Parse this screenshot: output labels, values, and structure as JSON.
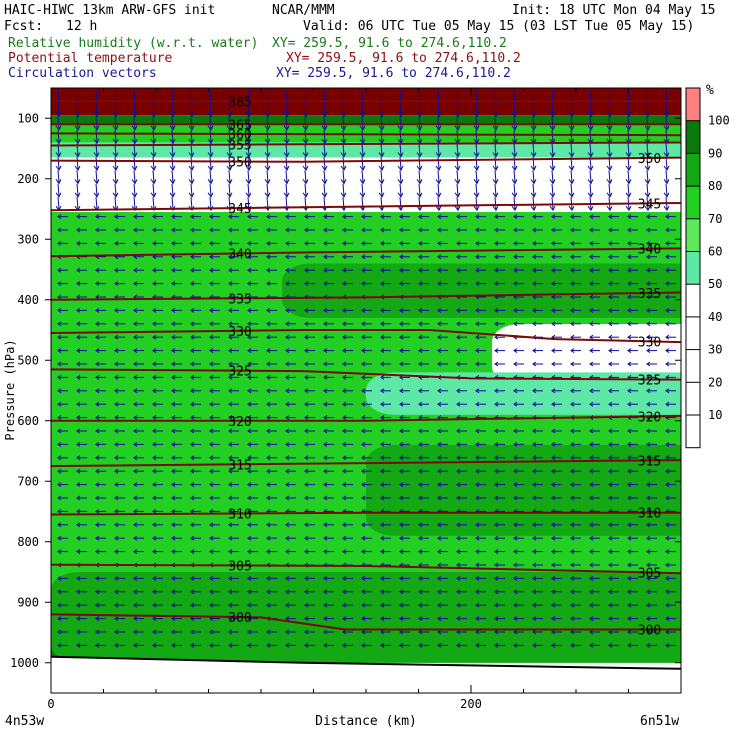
{
  "header": {
    "model": "HAIC-HIWC 13km ARW-GFS init",
    "center": "NCAR/MMM",
    "init": "Init: 18 UTC Mon 04 May 15",
    "fcst_label": "Fcst:",
    "fcst_value": "12 h",
    "valid": "Valid: 06 UTC Tue 05 May 15 (03 LST Tue 05 May 15)",
    "field1": "Relative humidity (w.r.t. water)",
    "field1_xy": "XY= 259.5, 91.6 to 274.6,110.2",
    "field2": "Potential temperature",
    "field2_xy": "XY= 259.5, 91.6 to 274.6,110.2",
    "field3": "Circulation vectors",
    "field3_xy": "XY= 259.5, 91.6 to 274.6,110.2"
  },
  "axes": {
    "ylabel": "Pressure (hPa)",
    "xlabel": "Distance (km)",
    "left_endpoint": "4n53w",
    "right_endpoint": "6n51w"
  },
  "colorbar": {
    "unit": "%",
    "levels": [
      "10",
      "20",
      "30",
      "40",
      "50",
      "60",
      "70",
      "80",
      "90",
      "100"
    ],
    "colors": {
      "0-50": "#ffffff",
      "50-60": "#5ee8a6",
      "60-70": "#5ee85a",
      "70-80": "#24cf24",
      "80-90": "#14a814",
      "90-100": "#0a780a",
      "100+": "#ff8080"
    }
  },
  "colors": {
    "theta_line": "#7a0a0a",
    "vector": "#0c0c9a",
    "top_rh_fill": "#7a0000"
  },
  "chart_data": {
    "type": "heatmap",
    "x_range_km": [
      0,
      300
    ],
    "x_ticks": [
      0,
      200
    ],
    "y_range_hpa": [
      50,
      1050
    ],
    "y_ticks": [
      100,
      200,
      300,
      400,
      500,
      600,
      700,
      800,
      900,
      1000
    ],
    "y_scale": "linear",
    "theta_contours_K": [
      {
        "label": "385",
        "p": [
          [
            0,
            72
          ],
          [
            300,
            72
          ]
        ]
      },
      {
        "label": "365",
        "p": [
          [
            0,
            110
          ],
          [
            300,
            110
          ]
        ]
      },
      {
        "label": "360",
        "p": [
          [
            0,
            125
          ],
          [
            300,
            128
          ]
        ]
      },
      {
        "label": "355",
        "p": [
          [
            0,
            145
          ],
          [
            300,
            140
          ]
        ]
      },
      {
        "label": "350",
        "p": [
          [
            0,
            170
          ],
          [
            120,
            172
          ],
          [
            300,
            165
          ]
        ]
      },
      {
        "label": "345",
        "p": [
          [
            0,
            252
          ],
          [
            100,
            248
          ],
          [
            300,
            240
          ]
        ]
      },
      {
        "label": "340",
        "p": [
          [
            0,
            328
          ],
          [
            120,
            322
          ],
          [
            300,
            315
          ]
        ]
      },
      {
        "label": "335",
        "p": [
          [
            0,
            400
          ],
          [
            150,
            396
          ],
          [
            300,
            388
          ]
        ]
      },
      {
        "label": "330",
        "p": [
          [
            0,
            455
          ],
          [
            120,
            450
          ],
          [
            180,
            450
          ],
          [
            240,
            465
          ],
          [
            300,
            470
          ]
        ]
      },
      {
        "label": "325",
        "p": [
          [
            0,
            515
          ],
          [
            120,
            518
          ],
          [
            200,
            530
          ],
          [
            300,
            532
          ]
        ]
      },
      {
        "label": "320",
        "p": [
          [
            0,
            600
          ],
          [
            150,
            600
          ],
          [
            300,
            592
          ]
        ]
      },
      {
        "label": "315",
        "p": [
          [
            0,
            675
          ],
          [
            150,
            670
          ],
          [
            300,
            665
          ]
        ]
      },
      {
        "label": "310",
        "p": [
          [
            0,
            755
          ],
          [
            150,
            752
          ],
          [
            300,
            752
          ]
        ]
      },
      {
        "label": "305",
        "p": [
          [
            0,
            838
          ],
          [
            150,
            840
          ],
          [
            300,
            852
          ]
        ]
      },
      {
        "label": "300",
        "p": [
          [
            0,
            920
          ],
          [
            100,
            925
          ],
          [
            140,
            945
          ],
          [
            300,
            945
          ]
        ]
      }
    ],
    "rh_layers": [
      {
        "p": [
          50,
          95
        ],
        "rh": 100
      },
      {
        "p": [
          95,
          110
        ],
        "rh": 95
      },
      {
        "p": [
          110,
          140
        ],
        "rh": 75
      },
      {
        "p": [
          140,
          165
        ],
        "rh": 55
      },
      {
        "p": [
          165,
          255
        ],
        "rh": 20
      },
      {
        "p": [
          255,
          950
        ],
        "rh": 75
      },
      {
        "p": [
          950,
          1000
        ],
        "rh": 90
      }
    ],
    "rh_features": [
      {
        "desc": "dry",
        "x": [
          210,
          300
        ],
        "p": [
          440,
          540
        ],
        "rh": 30
      },
      {
        "desc": "dry tongue",
        "x": [
          150,
          300
        ],
        "p": [
          520,
          590
        ],
        "rh": 55
      },
      {
        "desc": "moist",
        "x": [
          110,
          300
        ],
        "p": [
          340,
          430
        ],
        "rh": 85
      },
      {
        "desc": "moist",
        "x": [
          150,
          300
        ],
        "p": [
          640,
          790
        ],
        "rh": 85
      },
      {
        "desc": "moist",
        "x": [
          0,
          300
        ],
        "p": [
          850,
          1000
        ],
        "rh": 85
      }
    ],
    "surface_p_hpa": [
      [
        0,
        990
      ],
      [
        120,
        1000
      ],
      [
        300,
        1010
      ]
    ],
    "wind_direction": "easterly"
  }
}
